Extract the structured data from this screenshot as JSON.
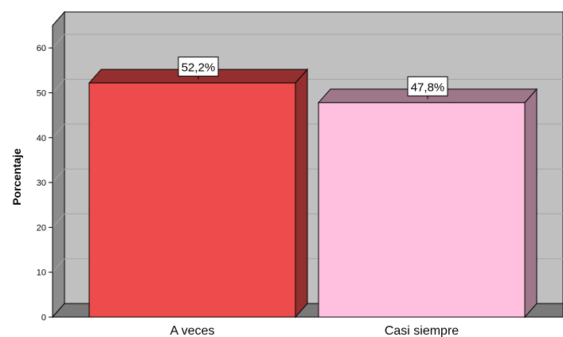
{
  "chart_data": {
    "type": "bar",
    "style": "3d",
    "categories": [
      "A veces",
      "Casi siempre"
    ],
    "values": [
      52.2,
      47.8
    ],
    "data_labels": [
      "52,2%",
      "47,8%"
    ],
    "colors": [
      "#ee4b4c",
      "#ffc0e0"
    ],
    "ylabel": "Porcentaje",
    "xlabel": "",
    "ylim": [
      0,
      65
    ],
    "yticks": [
      0,
      10,
      20,
      30,
      40,
      50,
      60
    ],
    "grid": true,
    "background_color": "#c0c0c0"
  }
}
